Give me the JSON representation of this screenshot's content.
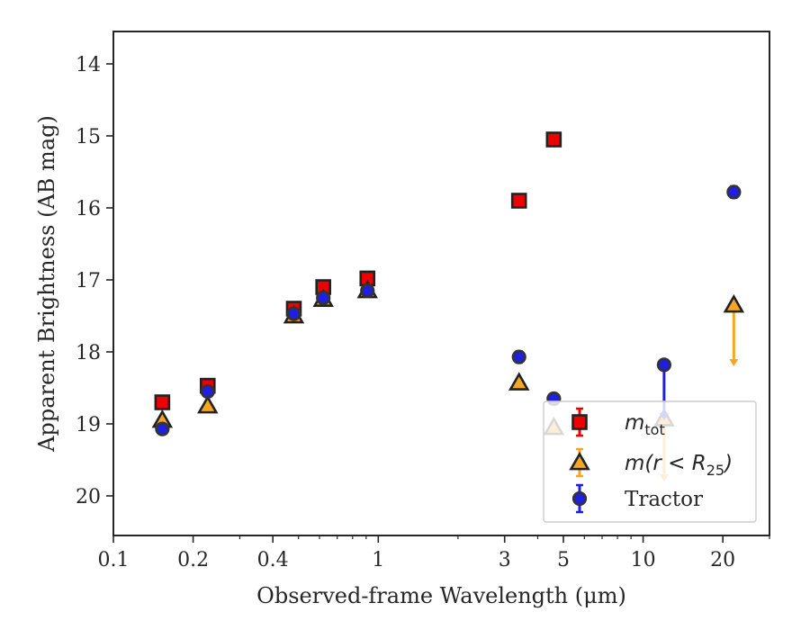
{
  "chart_data": {
    "type": "scatter",
    "title": "",
    "xlabel": "Observed-frame Wavelength (μm)",
    "ylabel": "Apparent Brightness (AB mag)",
    "xscale": "log",
    "xlim": [
      0.1,
      30
    ],
    "ylim": [
      20.55,
      13.55
    ],
    "y_inverted": true,
    "x_ticks": [
      0.1,
      0.2,
      0.4,
      1,
      3,
      5,
      10,
      20
    ],
    "x_tick_labels": [
      "0.1",
      "0.2",
      "0.4",
      "1",
      "3",
      "5",
      "10",
      "20"
    ],
    "y_ticks": [
      14,
      15,
      16,
      17,
      18,
      19,
      20
    ],
    "y_tick_labels": [
      "14",
      "15",
      "16",
      "17",
      "18",
      "19",
      "20"
    ],
    "grid": false,
    "legend_position": "lower-right",
    "series": [
      {
        "name": "m_tot",
        "legend_main": "m",
        "legend_sub": "tot",
        "marker": "square",
        "color": "#ee0000",
        "edge": "#222222",
        "x": [
          0.153,
          0.227,
          0.48,
          0.62,
          0.91,
          3.4,
          4.6
        ],
        "y": [
          18.7,
          18.47,
          17.4,
          17.1,
          16.98,
          15.9,
          15.05
        ]
      },
      {
        "name": "m(r<R25)",
        "legend_main": "m(r < R",
        "legend_sub": "25",
        "legend_tail": ")",
        "marker": "triangle",
        "color": "#f5a623",
        "edge": "#222222",
        "x": [
          0.153,
          0.227,
          0.48,
          0.62,
          0.91,
          3.4,
          4.6,
          12.0,
          22.0
        ],
        "y": [
          18.95,
          18.75,
          17.5,
          17.27,
          17.15,
          18.43,
          19.05,
          18.93,
          17.35
        ],
        "upper_limits": [
          {
            "x": 12.0,
            "y": 18.93,
            "to": 19.8
          },
          {
            "x": 22.0,
            "y": 17.35,
            "to": 18.2
          }
        ]
      },
      {
        "name": "Tractor",
        "legend_main": "Tractor",
        "marker": "circle",
        "color": "#1f1fe0",
        "edge": "#333333",
        "x": [
          0.153,
          0.227,
          0.48,
          0.62,
          0.91,
          3.4,
          4.6,
          12.0,
          22.0
        ],
        "y": [
          19.07,
          18.55,
          17.47,
          17.25,
          17.15,
          18.07,
          18.65,
          18.18,
          15.78
        ],
        "yerr": [
          0.05,
          0.04,
          0.03,
          0.03,
          0.03,
          0.08,
          0.07,
          0.05,
          0.08
        ],
        "upper_limits": [
          {
            "x": 12.0,
            "y": 18.18,
            "to": 18.95
          }
        ]
      }
    ]
  }
}
